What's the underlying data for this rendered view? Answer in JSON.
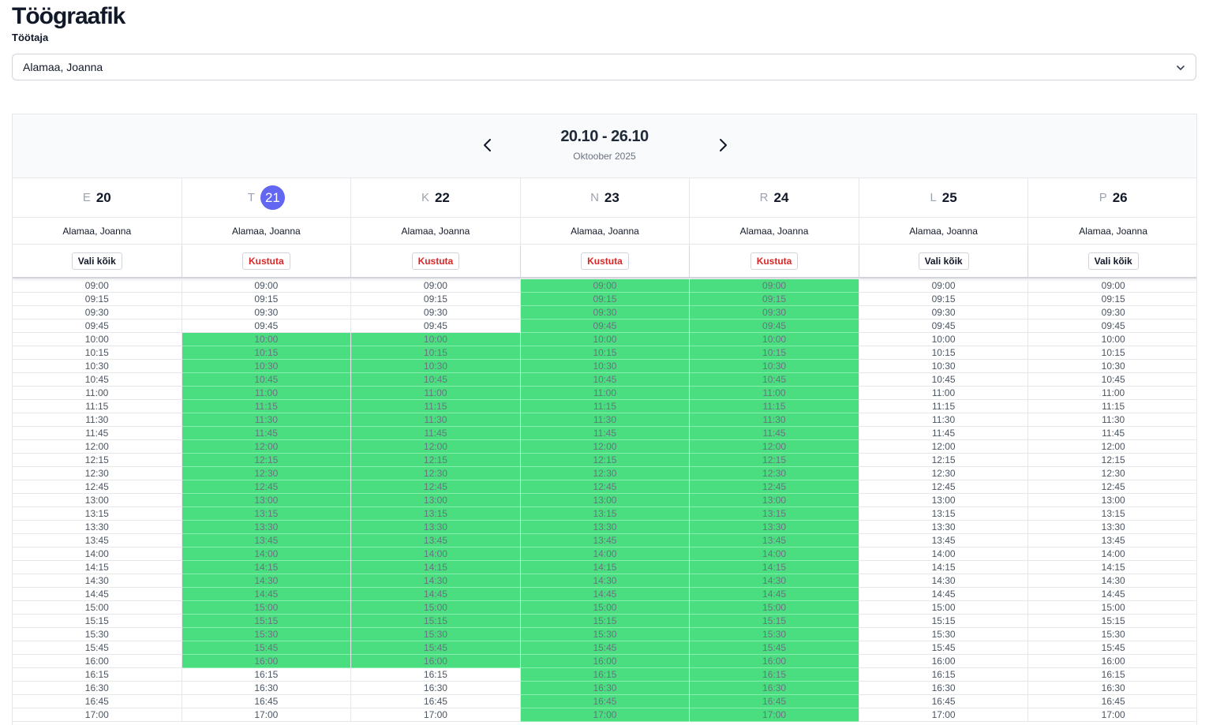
{
  "page": {
    "title": "Töögraafik",
    "employee_label": "Töötaja"
  },
  "employee_select": {
    "value": "Alamaa, Joanna"
  },
  "calendar": {
    "range": "20.10 - 26.10",
    "month": "Oktoober 2025",
    "colors": {
      "available": "#4ade80",
      "today": "#6366f1",
      "delete": "#dc2626"
    },
    "times": [
      "09:00",
      "09:15",
      "09:30",
      "09:45",
      "10:00",
      "10:15",
      "10:30",
      "10:45",
      "11:00",
      "11:15",
      "11:30",
      "11:45",
      "12:00",
      "12:15",
      "12:30",
      "12:45",
      "13:00",
      "13:15",
      "13:30",
      "13:45",
      "14:00",
      "14:15",
      "14:30",
      "14:45",
      "15:00",
      "15:15",
      "15:30",
      "15:45",
      "16:00",
      "16:15",
      "16:30",
      "16:45",
      "17:00"
    ],
    "days": [
      {
        "letter": "E",
        "num": "20",
        "today": false,
        "employee": "Alamaa, Joanna",
        "action": "Vali kõik",
        "selected_range": null
      },
      {
        "letter": "T",
        "num": "21",
        "today": true,
        "employee": "Alamaa, Joanna",
        "action": "Kustuta",
        "selected_range": [
          "10:00",
          "16:00"
        ]
      },
      {
        "letter": "K",
        "num": "22",
        "today": false,
        "employee": "Alamaa, Joanna",
        "action": "Kustuta",
        "selected_range": [
          "10:00",
          "16:00"
        ]
      },
      {
        "letter": "N",
        "num": "23",
        "today": false,
        "employee": "Alamaa, Joanna",
        "action": "Kustuta",
        "selected_range": [
          "09:00",
          "17:00"
        ]
      },
      {
        "letter": "R",
        "num": "24",
        "today": false,
        "employee": "Alamaa, Joanna",
        "action": "Kustuta",
        "selected_range": [
          "09:00",
          "17:00"
        ]
      },
      {
        "letter": "L",
        "num": "25",
        "today": false,
        "employee": "Alamaa, Joanna",
        "action": "Vali kõik",
        "selected_range": null
      },
      {
        "letter": "P",
        "num": "26",
        "today": false,
        "employee": "Alamaa, Joanna",
        "action": "Vali kõik",
        "selected_range": null
      }
    ]
  }
}
